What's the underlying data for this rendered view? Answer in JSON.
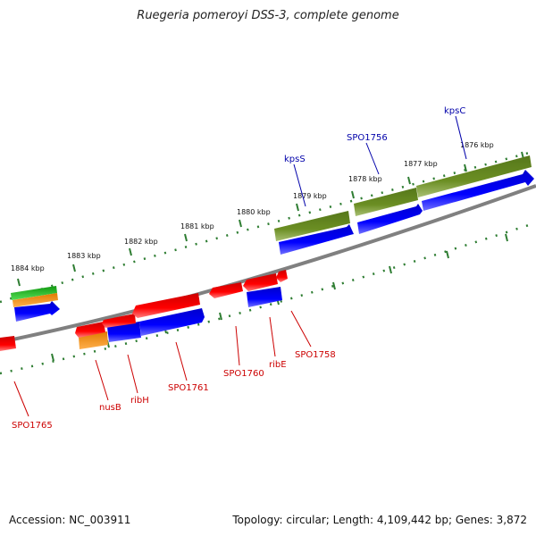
{
  "title": "Ruegeria pomeroyi DSS-3, complete genome",
  "footer": {
    "accession": "Accession: NC_003911",
    "summary": "Topology: circular; Length: 4,109,442 bp; Genes: 3,872"
  },
  "colors": {
    "forward_orf": "#0000ee",
    "reverse_orf": "#ee0000",
    "forward_label": "#0000aa",
    "reverse_label": "#cc0000",
    "cds_olive": "#6b8e23",
    "rrna_green": "#22bb22",
    "orange": "#ff8c00",
    "backbone": "#808080",
    "ticks": "#2e7d32"
  },
  "kbp_ticks": [
    "1876 kbp",
    "1877 kbp",
    "1878 kbp",
    "1879 kbp",
    "1880 kbp",
    "1881 kbp",
    "1882 kbp",
    "1883 kbp",
    "1884 kbp"
  ],
  "forward_labels": [
    "kpsC",
    "SPO1756",
    "kpsS"
  ],
  "reverse_labels": [
    "SPO1758",
    "ribE",
    "SPO1760",
    "SPO1761",
    "ribH",
    "nusB",
    "SPO1765"
  ]
}
